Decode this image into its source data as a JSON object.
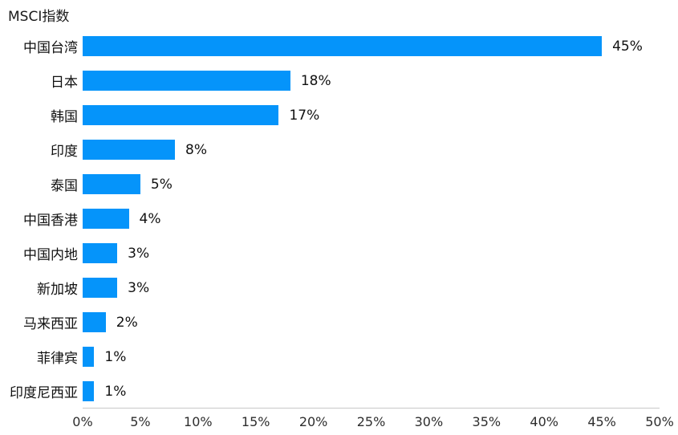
{
  "page": {
    "title": "MSCI指数"
  },
  "colors": {
    "bar": "#0594fa",
    "axis_line": "#c9c9c9",
    "text": "#1a1a1a"
  },
  "chart_data": {
    "type": "bar",
    "orientation": "horizontal",
    "title": "MSCI指数",
    "categories": [
      "中国台湾",
      "日本",
      "韩国",
      "印度",
      "泰国",
      "中国香港",
      "中国内地",
      "新加坡",
      "马来西亚",
      "菲律宾",
      "印度尼西亚"
    ],
    "values": [
      45,
      18,
      17,
      8,
      5,
      4,
      3,
      3,
      2,
      1,
      1
    ],
    "value_labels": [
      "45%",
      "18%",
      "17%",
      "8%",
      "5%",
      "4%",
      "3%",
      "3%",
      "2%",
      "1%",
      "1%"
    ],
    "xlabel": "",
    "ylabel": "",
    "xlim": [
      0,
      50
    ],
    "x_tick_values": [
      0,
      5,
      10,
      15,
      20,
      25,
      30,
      35,
      40,
      45,
      50
    ],
    "x_tick_labels": [
      "0%",
      "5%",
      "10%",
      "15%",
      "20%",
      "25%",
      "30%",
      "35%",
      "40%",
      "45%",
      "50%"
    ],
    "grid": false,
    "legend": "none",
    "bar_color": "#0594fa"
  }
}
